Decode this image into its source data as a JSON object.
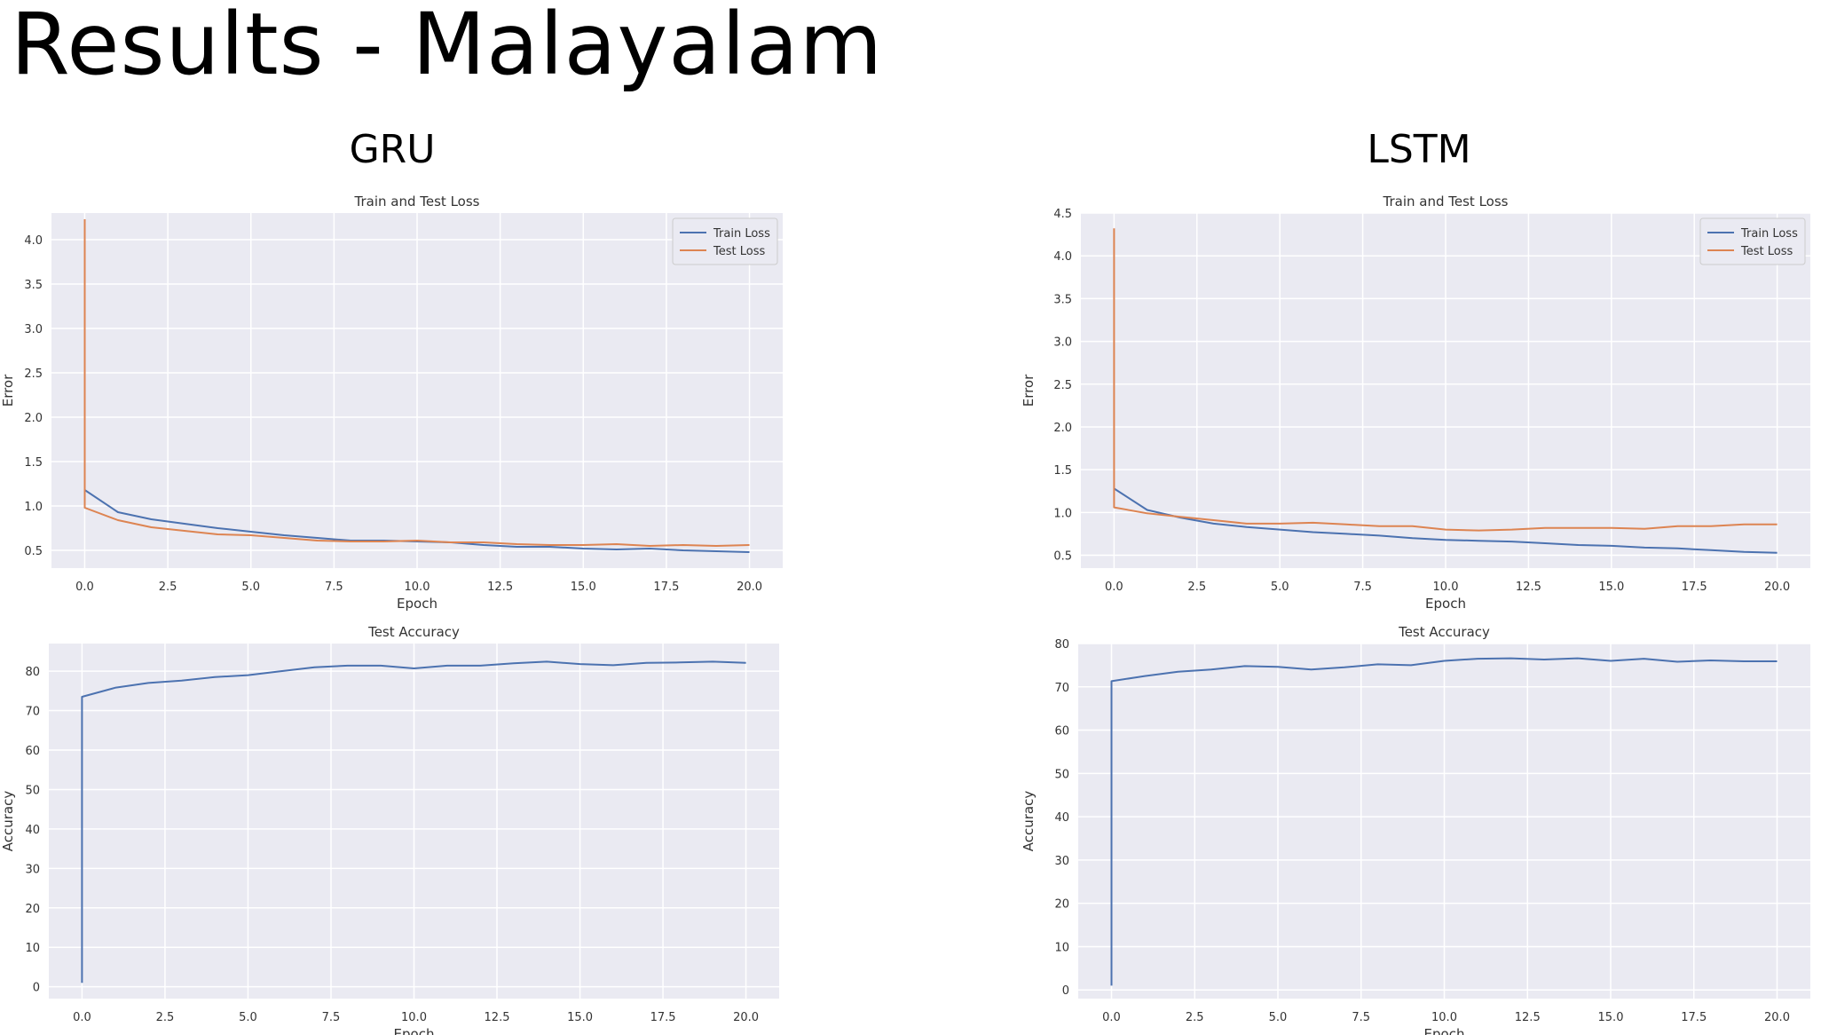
{
  "slide": {
    "title": "Results - Malayalam"
  },
  "columns": [
    "GRU",
    "LSTM"
  ],
  "colors": {
    "train": "#4c72b0",
    "test": "#dd8452",
    "plot_bg": "#eaeaf2",
    "grid": "#ffffff"
  },
  "chart_data": [
    {
      "id": "gru-loss",
      "type": "line",
      "title": "Train and Test Loss",
      "xlabel": "Epoch",
      "ylabel": "Error",
      "xlim": [
        -1,
        21
      ],
      "ylim": [
        0.3,
        4.3
      ],
      "xticks": [
        0,
        2.5,
        5,
        7.5,
        10,
        12.5,
        15,
        17.5,
        20
      ],
      "xtick_labels": [
        "0.0",
        "2.5",
        "5.0",
        "7.5",
        "10.0",
        "12.5",
        "15.0",
        "17.5",
        "20.0"
      ],
      "yticks": [
        0.5,
        1.0,
        1.5,
        2.0,
        2.5,
        3.0,
        3.5,
        4.0
      ],
      "ytick_labels": [
        "0.5",
        "1.0",
        "1.5",
        "2.0",
        "2.5",
        "3.0",
        "3.5",
        "4.0"
      ],
      "legend_position": "top-right",
      "series": [
        {
          "name": "Train Loss",
          "color_key": "train",
          "x": [
            0,
            1,
            2,
            3,
            4,
            5,
            6,
            7,
            8,
            9,
            10,
            11,
            12,
            13,
            14,
            15,
            16,
            17,
            18,
            19,
            20
          ],
          "y": [
            1.18,
            0.93,
            0.85,
            0.8,
            0.75,
            0.71,
            0.67,
            0.64,
            0.61,
            0.61,
            0.6,
            0.59,
            0.56,
            0.54,
            0.54,
            0.52,
            0.51,
            0.52,
            0.5,
            0.49,
            0.48
          ]
        },
        {
          "name": "Test Loss",
          "color_key": "test",
          "x": [
            0,
            0,
            1,
            2,
            3,
            4,
            5,
            6,
            7,
            8,
            9,
            10,
            11,
            12,
            13,
            14,
            15,
            16,
            17,
            18,
            19,
            20
          ],
          "y": [
            4.23,
            0.98,
            0.84,
            0.76,
            0.72,
            0.68,
            0.67,
            0.64,
            0.61,
            0.6,
            0.6,
            0.61,
            0.59,
            0.59,
            0.57,
            0.56,
            0.56,
            0.57,
            0.55,
            0.56,
            0.55,
            0.56
          ]
        }
      ]
    },
    {
      "id": "gru-acc",
      "type": "line",
      "title": "Test Accuracy",
      "xlabel": "Epoch",
      "ylabel": "Accuracy",
      "xlim": [
        -1,
        21
      ],
      "ylim": [
        -3,
        87
      ],
      "xticks": [
        0,
        2.5,
        5,
        7.5,
        10,
        12.5,
        15,
        17.5,
        20
      ],
      "xtick_labels": [
        "0.0",
        "2.5",
        "5.0",
        "7.5",
        "10.0",
        "12.5",
        "15.0",
        "17.5",
        "20.0"
      ],
      "yticks": [
        0,
        10,
        20,
        30,
        40,
        50,
        60,
        70,
        80
      ],
      "ytick_labels": [
        "0",
        "10",
        "20",
        "30",
        "40",
        "50",
        "60",
        "70",
        "80"
      ],
      "series": [
        {
          "color_key": "train",
          "x": [
            0,
            0,
            1,
            2,
            3,
            4,
            5,
            6,
            7,
            8,
            9,
            10,
            11,
            12,
            13,
            14,
            15,
            16,
            17,
            18,
            19,
            20
          ],
          "y": [
            1,
            73.5,
            75.8,
            77.0,
            77.6,
            78.5,
            79.0,
            80.0,
            81.0,
            81.4,
            81.4,
            80.7,
            81.4,
            81.4,
            82.0,
            82.4,
            81.8,
            81.5,
            82.1,
            82.2,
            82.4,
            82.1
          ]
        }
      ]
    },
    {
      "id": "lstm-loss",
      "type": "line",
      "title": "Train and Test Loss",
      "xlabel": "Epoch",
      "ylabel": "Error",
      "xlim": [
        -1,
        21
      ],
      "ylim": [
        0.35,
        4.5
      ],
      "xticks": [
        0,
        2.5,
        5,
        7.5,
        10,
        12.5,
        15,
        17.5,
        20
      ],
      "xtick_labels": [
        "0.0",
        "2.5",
        "5.0",
        "7.5",
        "10.0",
        "12.5",
        "15.0",
        "17.5",
        "20.0"
      ],
      "yticks": [
        0.5,
        1.0,
        1.5,
        2.0,
        2.5,
        3.0,
        3.5,
        4.0,
        4.5
      ],
      "ytick_labels": [
        "0.5",
        "1.0",
        "1.5",
        "2.0",
        "2.5",
        "3.0",
        "3.5",
        "4.0",
        "4.5"
      ],
      "legend_position": "top-right",
      "series": [
        {
          "name": "Train Loss",
          "color_key": "train",
          "x": [
            0,
            1,
            2,
            3,
            4,
            5,
            6,
            7,
            8,
            9,
            10,
            11,
            12,
            13,
            14,
            15,
            16,
            17,
            18,
            19,
            20
          ],
          "y": [
            1.28,
            1.03,
            0.94,
            0.87,
            0.83,
            0.8,
            0.77,
            0.75,
            0.73,
            0.7,
            0.68,
            0.67,
            0.66,
            0.64,
            0.62,
            0.61,
            0.59,
            0.58,
            0.56,
            0.54,
            0.53
          ]
        },
        {
          "name": "Test Loss",
          "color_key": "test",
          "x": [
            0,
            0,
            1,
            2,
            3,
            4,
            5,
            6,
            7,
            8,
            9,
            10,
            11,
            12,
            13,
            14,
            15,
            16,
            17,
            18,
            19,
            20
          ],
          "y": [
            4.32,
            1.06,
            0.99,
            0.95,
            0.91,
            0.87,
            0.87,
            0.88,
            0.86,
            0.84,
            0.84,
            0.8,
            0.79,
            0.8,
            0.82,
            0.82,
            0.82,
            0.81,
            0.84,
            0.84,
            0.86,
            0.86
          ]
        }
      ]
    },
    {
      "id": "lstm-acc",
      "type": "line",
      "title": "Test Accuracy",
      "xlabel": "Epoch",
      "ylabel": "Accuracy",
      "xlim": [
        -1,
        21
      ],
      "ylim": [
        -2,
        80
      ],
      "xticks": [
        0,
        2.5,
        5,
        7.5,
        10,
        12.5,
        15,
        17.5,
        20
      ],
      "xtick_labels": [
        "0.0",
        "2.5",
        "5.0",
        "7.5",
        "10.0",
        "12.5",
        "15.0",
        "17.5",
        "20.0"
      ],
      "yticks": [
        0,
        10,
        20,
        30,
        40,
        50,
        60,
        70,
        80
      ],
      "ytick_labels": [
        "0",
        "10",
        "20",
        "30",
        "40",
        "50",
        "60",
        "70",
        "80"
      ],
      "series": [
        {
          "color_key": "train",
          "x": [
            0,
            0,
            1,
            2,
            3,
            4,
            5,
            6,
            7,
            8,
            9,
            10,
            11,
            12,
            13,
            14,
            15,
            16,
            17,
            18,
            19,
            20
          ],
          "y": [
            1,
            71.3,
            72.5,
            73.5,
            74.0,
            74.8,
            74.6,
            74.0,
            74.5,
            75.2,
            75.0,
            76.0,
            76.5,
            76.6,
            76.3,
            76.6,
            76.0,
            76.5,
            75.8,
            76.1,
            75.9,
            75.9
          ]
        }
      ]
    }
  ]
}
